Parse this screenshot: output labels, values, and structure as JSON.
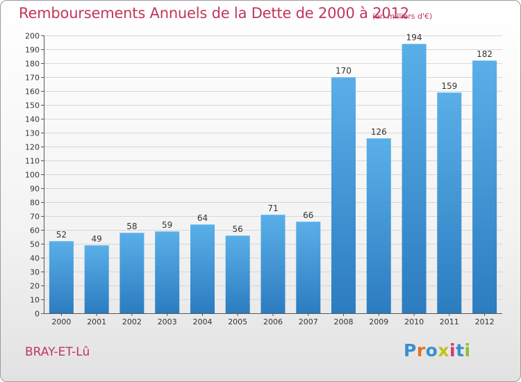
{
  "title": "Remboursements Annuels de la Dette de 2000 à 2012",
  "unit_note": "(en milliers d'€)",
  "commune": "BRAY-ET-Lû",
  "brand": {
    "letters": [
      "P",
      "r",
      "o",
      "x",
      "i",
      "t",
      "i"
    ],
    "colors": [
      "#3a8fd1",
      "#e5721b",
      "#3a8fd1",
      "#c3c21a",
      "#d23a6e",
      "#3a8fd1",
      "#8fbf2e"
    ]
  },
  "colors": {
    "accent": "#c0365a",
    "bar_top": "#5aafe8",
    "bar_bottom": "#2c7cc0"
  },
  "chart_data": {
    "type": "bar",
    "categories": [
      "2000",
      "2001",
      "2002",
      "2003",
      "2004",
      "2005",
      "2006",
      "2007",
      "2008",
      "2009",
      "2010",
      "2011",
      "2012"
    ],
    "values": [
      52,
      49,
      58,
      59,
      64,
      56,
      71,
      66,
      170,
      126,
      194,
      159,
      182
    ],
    "ylim": [
      0,
      200
    ],
    "ytick_step": 10,
    "grid": true
  }
}
